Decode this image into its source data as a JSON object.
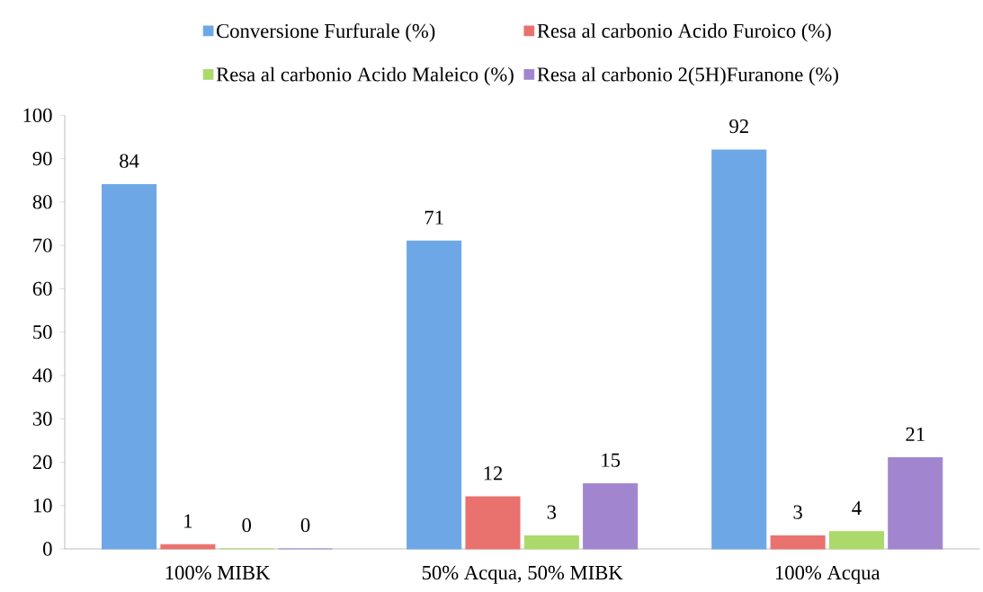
{
  "chart_data": {
    "type": "bar",
    "categories": [
      "100% MIBK",
      "50% Acqua, 50% MIBK",
      "100% Acqua"
    ],
    "series": [
      {
        "name": "Conversione Furfurale (%)",
        "color": "#6ea7e6",
        "values": [
          84,
          71,
          92
        ]
      },
      {
        "name": "Resa al carbonio Acido Furoico (%)",
        "color": "#e9726e",
        "values": [
          1,
          12,
          3
        ]
      },
      {
        "name": "Resa al carbonio Acido Maleico (%)",
        "color": "#acd96c",
        "values": [
          0,
          3,
          4
        ]
      },
      {
        "name": "Resa al carbonio 2(5H)Furanone (%)",
        "color": "#a285cf",
        "values": [
          0,
          15,
          21
        ]
      }
    ],
    "ylim": [
      0,
      100
    ],
    "yticks": [
      0,
      10,
      20,
      30,
      40,
      50,
      60,
      70,
      80,
      90,
      100
    ],
    "data_labels": true,
    "legend": "top",
    "grid": false
  }
}
